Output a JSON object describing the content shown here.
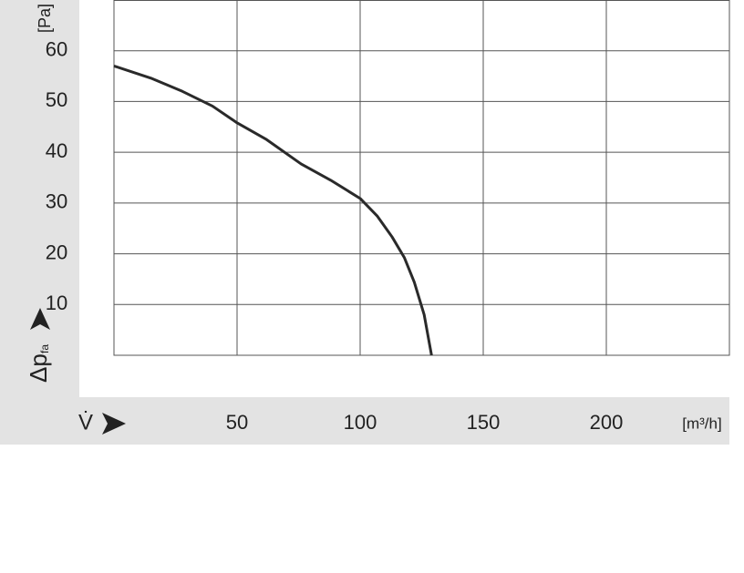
{
  "chart_data": {
    "type": "line",
    "y_unit": "[Pa]",
    "y_label": "Δp",
    "y_label_sub": "fa",
    "x_label": "V̇",
    "x_unit": "[m³/h]",
    "x": [
      0,
      15,
      27.8,
      40,
      50,
      62,
      76,
      88,
      100,
      107,
      113,
      118,
      122,
      126,
      129
    ],
    "series": [
      {
        "color": "#2a2a2a",
        "values": [
          57,
          54.6,
          52,
          49.1,
          45.8,
          42.5,
          37.7,
          34.5,
          30.9,
          27.4,
          23.3,
          19.2,
          14.4,
          8,
          0
        ]
      }
    ],
    "xlim": [
      0,
      250
    ],
    "ylim": [
      0,
      70
    ],
    "xticks": [
      50,
      100,
      150,
      200
    ],
    "yticks": [
      10,
      20,
      30,
      40,
      50,
      60
    ],
    "grid": true
  }
}
